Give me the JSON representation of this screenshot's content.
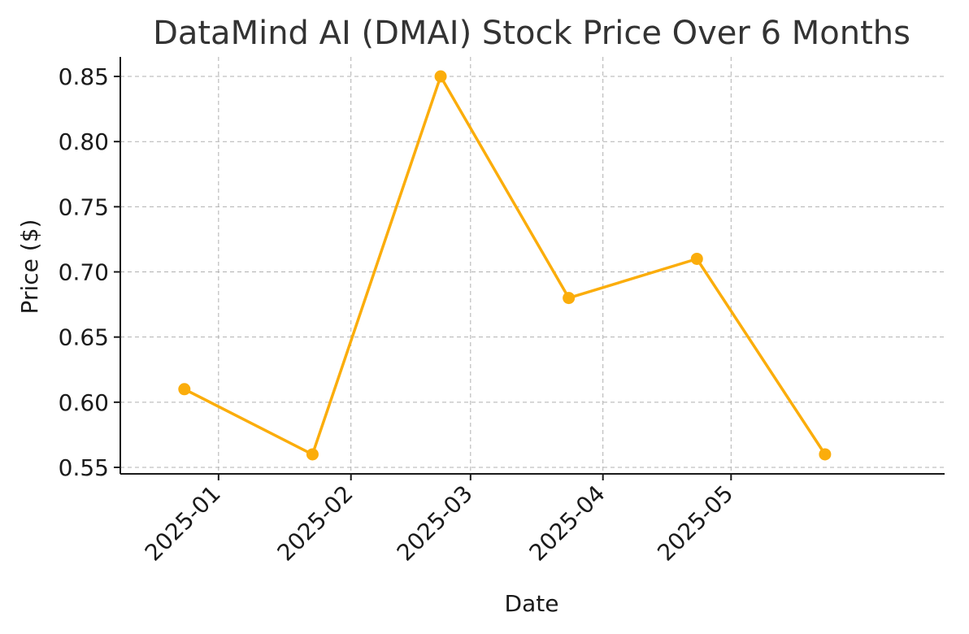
{
  "chart_data": {
    "type": "line",
    "title": "DataMind AI (DMAI) Stock Price Over 6 Months",
    "xlabel": "Date",
    "ylabel": "Price ($)",
    "x_ticks": [
      "2025-01",
      "2025-02",
      "2025-03",
      "2025-04",
      "2025-05"
    ],
    "y_ticks": [
      "0.55",
      "0.60",
      "0.65",
      "0.70",
      "0.75",
      "0.80",
      "0.85"
    ],
    "ylim": [
      0.545,
      0.865
    ],
    "xlim": [
      "2024-12-09",
      "2025-06-20"
    ],
    "grid": true,
    "series": [
      {
        "color": "#FBAD0B",
        "points": [
          {
            "x": "2024-12-24",
            "y": 0.61
          },
          {
            "x": "2025-01-23",
            "y": 0.56
          },
          {
            "x": "2025-02-22",
            "y": 0.85
          },
          {
            "x": "2025-03-24",
            "y": 0.68
          },
          {
            "x": "2025-04-23",
            "y": 0.71
          },
          {
            "x": "2025-05-23",
            "y": 0.56
          }
        ]
      }
    ]
  }
}
